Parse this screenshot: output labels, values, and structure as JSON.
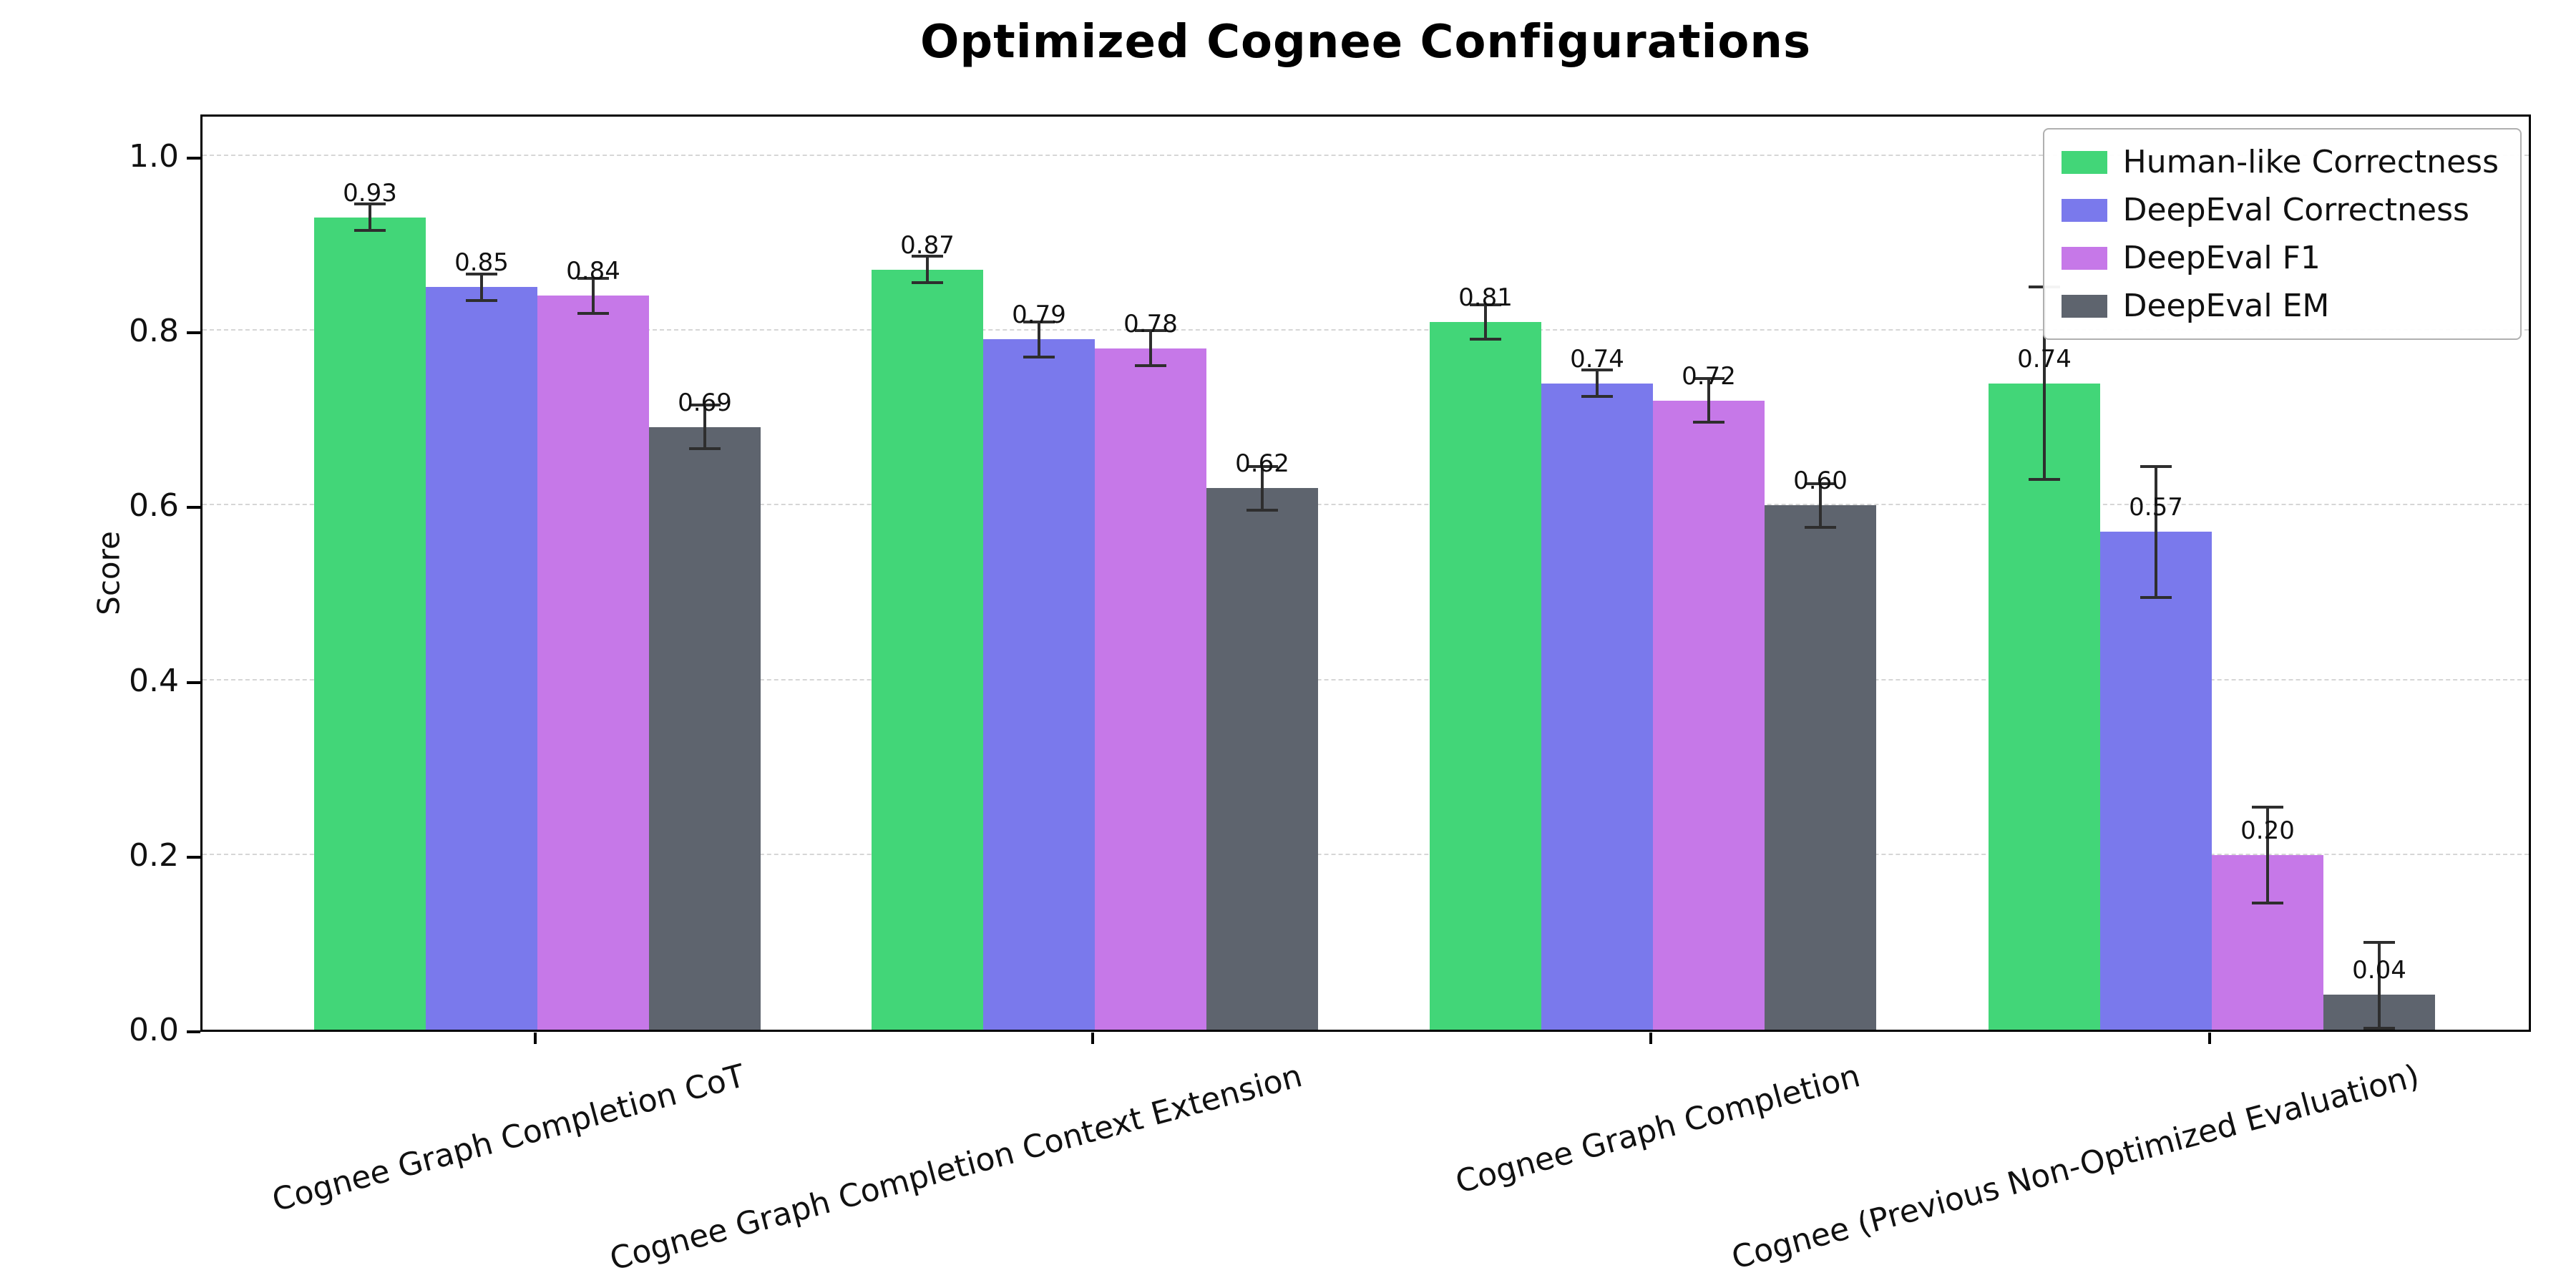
{
  "chart_data": {
    "type": "bar",
    "title": "Optimized Cognee Configurations",
    "xlabel": "",
    "ylabel": "Score",
    "ylim": [
      0,
      1.05
    ],
    "yticks": [
      0.0,
      0.2,
      0.4,
      0.6,
      0.8,
      1.0
    ],
    "grid": "horizontal-dashed",
    "legend_position": "upper-right",
    "bar_value_labels": true,
    "error_bars": true,
    "categories": [
      "Cognee Graph Completion CoT",
      "Cognee Graph Completion Context Extension",
      "Cognee Graph Completion",
      "Cognee (Previous Non-Optimized Evaluation)"
    ],
    "series": [
      {
        "name": "Human-like Correctness",
        "color": "#42d678",
        "values": [
          0.93,
          0.87,
          0.81,
          0.74
        ],
        "errors": [
          0.015,
          0.015,
          0.02,
          0.11
        ]
      },
      {
        "name": "DeepEval Correctness",
        "color": "#7a79ec",
        "values": [
          0.85,
          0.79,
          0.74,
          0.57
        ],
        "errors": [
          0.015,
          0.02,
          0.015,
          0.075
        ]
      },
      {
        "name": "DeepEval F1",
        "color": "#c678e8",
        "values": [
          0.84,
          0.78,
          0.72,
          0.2
        ],
        "errors": [
          0.02,
          0.02,
          0.025,
          0.055
        ]
      },
      {
        "name": "DeepEval EM",
        "color": "#5e646e",
        "values": [
          0.69,
          0.62,
          0.6,
          0.04
        ],
        "errors": [
          0.025,
          0.025,
          0.025,
          0.06
        ]
      }
    ],
    "colors": {
      "axis": "#000000",
      "grid": "#d6d6d6",
      "error_bar": "#2e2e2e",
      "background": "#ffffff"
    }
  }
}
